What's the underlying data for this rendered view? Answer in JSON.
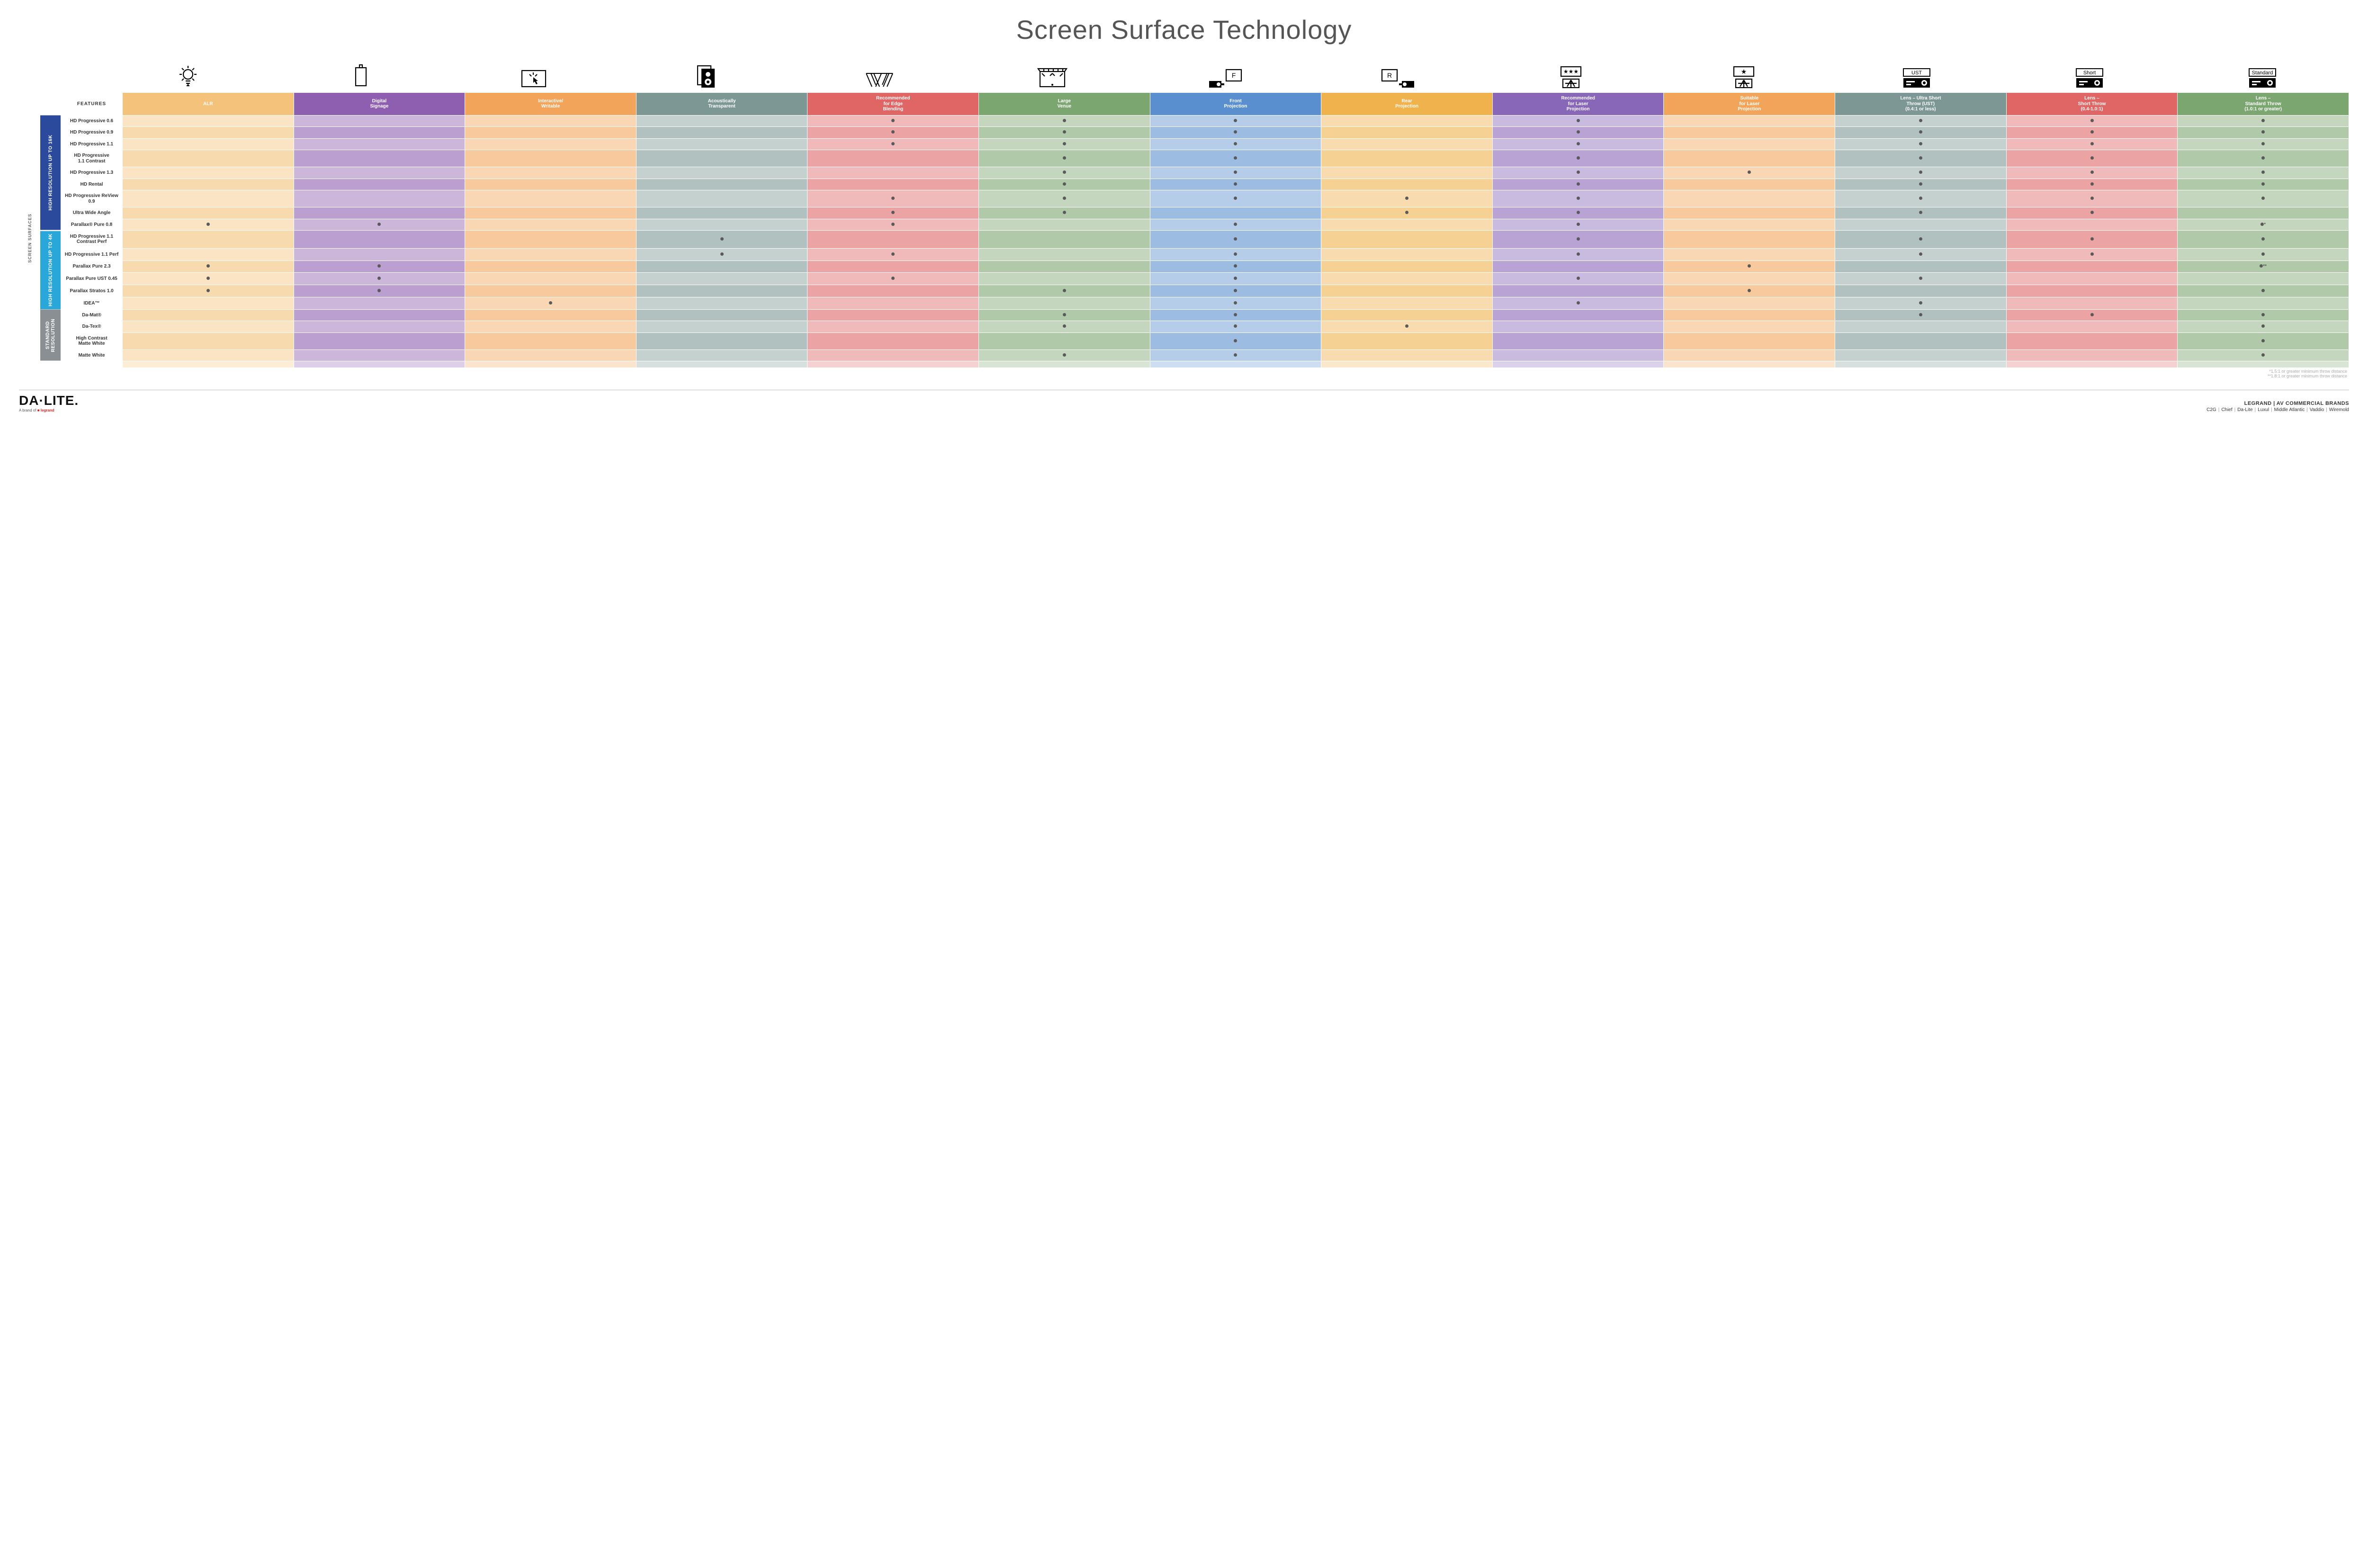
{
  "title": "Screen Surface Technology",
  "outer_label": "SCREEN SURFACES",
  "features_header": "FEATURES",
  "columns": [
    {
      "key": "alr",
      "label": "ALR",
      "colors": [
        "#f4c27a",
        "#f9d9a6"
      ]
    },
    {
      "key": "signage",
      "label": "Digital\nSignage",
      "colors": [
        "#8e5fb0",
        "#b792ce"
      ]
    },
    {
      "key": "interactive",
      "label": "Interactive/\nWritable",
      "colors": [
        "#f2a55a",
        "#f8cfa0"
      ]
    },
    {
      "key": "acoustic",
      "label": "Acoustically\nTransparent",
      "colors": [
        "#7d9894",
        "#aebfba"
      ]
    },
    {
      "key": "edge",
      "label": "Recommended\nfor Edge\nBlending",
      "colors": [
        "#e06666",
        "#f0a8a0"
      ]
    },
    {
      "key": "large",
      "label": "Large\nVenue",
      "colors": [
        "#7ca66f",
        "#b5cfa6"
      ]
    },
    {
      "key": "front",
      "label": "Front\nProjection",
      "colors": [
        "#5a8fcf",
        "#a7c4e4"
      ]
    },
    {
      "key": "rear",
      "label": "Rear\nProjection",
      "colors": [
        "#f0b24d",
        "#f7d59b"
      ]
    },
    {
      "key": "rec_laser",
      "label": "Recommended\nfor Laser\nProjection",
      "colors": [
        "#8866b8",
        "#b8a3d6"
      ]
    },
    {
      "key": "suit_laser",
      "label": "Suitable\nfor Laser\nProjection",
      "colors": [
        "#f2a55a",
        "#f8cfa0"
      ]
    },
    {
      "key": "ust",
      "label": "Lens – Ultra Short\nThrow (UST)\n(0.4:1 or less)",
      "colors": [
        "#7d9894",
        "#aebfba"
      ]
    },
    {
      "key": "short",
      "label": "Lens –\nShort Throw\n(0.4-1.0:1)",
      "colors": [
        "#e06666",
        "#f0a8a0"
      ]
    },
    {
      "key": "std",
      "label": "Lens –\nStandard Throw\n(1.0:1 or greater)",
      "colors": [
        "#7ca66f",
        "#b5cfa6"
      ]
    }
  ],
  "groups": [
    {
      "label": "HIGH RESOLUTION UP TO 16K",
      "color": "#2b4a9b",
      "rows": [
        {
          "label": "HD Progressive 0.6",
          "cells": {
            "edge": "•",
            "large": "•",
            "front": "•",
            "rec_laser": "•",
            "ust": "•",
            "short": "•",
            "std": "•"
          }
        },
        {
          "label": "HD Progressive 0.9",
          "cells": {
            "edge": "•",
            "large": "•",
            "front": "•",
            "rec_laser": "•",
            "ust": "•",
            "short": "•",
            "std": "•"
          }
        },
        {
          "label": "HD Progressive 1.1",
          "cells": {
            "edge": "•",
            "large": "•",
            "front": "•",
            "rec_laser": "•",
            "ust": "•",
            "short": "•",
            "std": "•"
          }
        },
        {
          "label": "HD Progressive\n1.1 Contrast",
          "cells": {
            "large": "•",
            "front": "•",
            "rec_laser": "•",
            "ust": "•",
            "short": "•",
            "std": "•"
          }
        },
        {
          "label": "HD Progressive 1.3",
          "cells": {
            "large": "•",
            "front": "•",
            "rec_laser": "•",
            "suit_laser": "•",
            "ust": "•",
            "short": "•",
            "std": "•"
          }
        },
        {
          "label": "HD Rental",
          "cells": {
            "large": "•",
            "front": "•",
            "rec_laser": "•",
            "ust": "•",
            "short": "•",
            "std": "•"
          }
        },
        {
          "label": "HD Progressive ReView 0.9",
          "cells": {
            "edge": "•",
            "large": "•",
            "front": "•",
            "rear": "•",
            "rec_laser": "•",
            "ust": "•",
            "short": "•",
            "std": "•"
          }
        },
        {
          "label": "Ultra Wide Angle",
          "cells": {
            "edge": "•",
            "large": "•",
            "rear": "•",
            "rec_laser": "•",
            "ust": "•",
            "short": "•"
          }
        },
        {
          "label": "Parallax® Pure 0.8",
          "cells": {
            "alr": "•",
            "signage": "•",
            "edge": "•",
            "front": "•",
            "rec_laser": "•",
            "std": "•*"
          }
        }
      ]
    },
    {
      "label": "HIGH RESOLUTION UP TO 4K",
      "color": "#2aa7d9",
      "rows": [
        {
          "label": "HD Progressive 1.1\nContrast Perf",
          "cells": {
            "acoustic": "•",
            "front": "•",
            "rec_laser": "•",
            "ust": "•",
            "short": "•",
            "std": "•"
          }
        },
        {
          "label": "HD Progressive 1.1 Perf",
          "cells": {
            "acoustic": "•",
            "edge": "•",
            "front": "•",
            "rec_laser": "•",
            "ust": "•",
            "short": "•",
            "std": "•"
          }
        },
        {
          "label": "Parallax Pure 2.3",
          "cells": {
            "alr": "•",
            "signage": "•",
            "front": "•",
            "suit_laser": "•",
            "std": "•**"
          }
        },
        {
          "label": "Parallax Pure UST 0.45",
          "cells": {
            "alr": "•",
            "signage": "•",
            "edge": "•",
            "front": "•",
            "rec_laser": "•",
            "ust": "•"
          }
        },
        {
          "label": "Parallax Stratos 1.0",
          "cells": {
            "alr": "•",
            "signage": "•",
            "large": "•",
            "front": "•",
            "suit_laser": "•",
            "std": "•"
          }
        },
        {
          "label": "IDEA™",
          "cells": {
            "interactive": "•",
            "front": "•",
            "rec_laser": "•",
            "ust": "•"
          }
        }
      ]
    },
    {
      "label": "STANDARD\nRESOLUTION",
      "color": "#8a8f93",
      "rows": [
        {
          "label": "Da-Mat®",
          "cells": {
            "large": "•",
            "front": "•",
            "ust": "•",
            "short": "•",
            "std": "•"
          }
        },
        {
          "label": "Da-Tex®",
          "cells": {
            "large": "•",
            "front": "•",
            "rear": "•",
            "std": "•"
          }
        },
        {
          "label": "High Contrast\nMatte White",
          "cells": {
            "front": "•",
            "std": "•"
          }
        },
        {
          "label": "Matte White",
          "cells": {
            "large": "•",
            "front": "•",
            "std": "•"
          }
        }
      ]
    }
  ],
  "footnotes": [
    "*1.5:1 or greater minimum throw distance",
    "**1.8:1 or greater minimum throw distance"
  ],
  "footer": {
    "brand": "DA·LITE.",
    "sub_prefix": "A brand of ",
    "sub_brand": "legrand",
    "heading": "LEGRAND | AV COMMERCIAL BRANDS",
    "brands": [
      "C2G",
      "Chief",
      "Da-Lite",
      "Luxul",
      "Middle Atlantic",
      "Vaddio",
      "Wiremold"
    ]
  },
  "icon_labels": {
    "ust": "UST",
    "short": "Short",
    "std": "Standard",
    "front": "F",
    "rear": "R"
  }
}
